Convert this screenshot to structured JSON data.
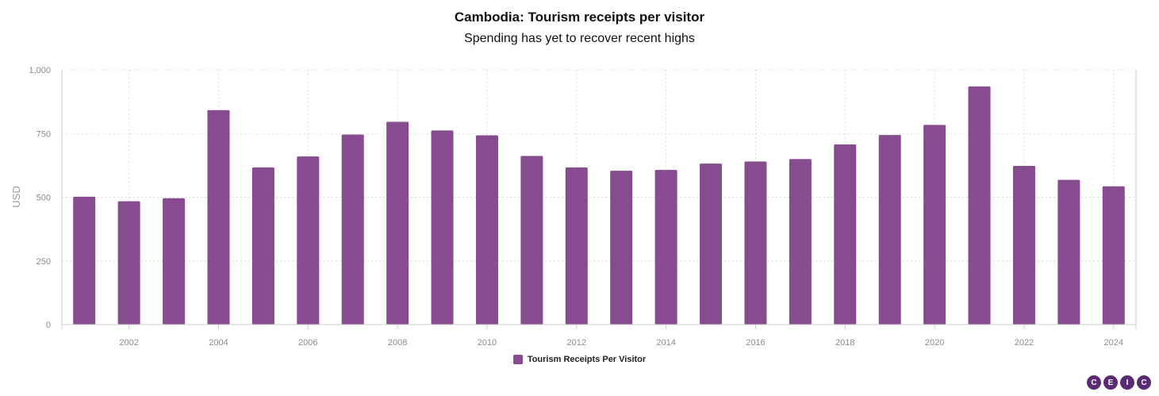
{
  "title": "Cambodia: Tourism receipts per visitor",
  "subtitle": "Spending has yet to recover recent highs",
  "colors": {
    "bar": "#874b8f",
    "logo": "#5a2a75"
  },
  "logo": [
    "C",
    "E",
    "I",
    "C"
  ],
  "chart_data": {
    "type": "bar",
    "title": "Cambodia: Tourism receipts per visitor",
    "subtitle": "Spending has yet to recover recent highs",
    "ylabel": "USD",
    "xlabel": "",
    "ylim": [
      0,
      1000
    ],
    "yticks": [
      0,
      250,
      500,
      750,
      1000
    ],
    "ytick_labels": [
      "0",
      "250",
      "500",
      "750",
      "1,000"
    ],
    "grid": true,
    "legend_position": "bottom-center",
    "categories": [
      "2001",
      "2002",
      "2003",
      "2004",
      "2005",
      "2006",
      "2007",
      "2008",
      "2009",
      "2010",
      "2011",
      "2012",
      "2013",
      "2014",
      "2015",
      "2016",
      "2017",
      "2018",
      "2019",
      "2020",
      "2021",
      "2022",
      "2023",
      "2024"
    ],
    "xtick_labels": [
      "2002",
      "2004",
      "2006",
      "2008",
      "2010",
      "2012",
      "2014",
      "2016",
      "2018",
      "2020",
      "2022",
      "2024"
    ],
    "series": [
      {
        "name": "Tourism Receipts Per Visitor",
        "values": [
          502,
          484,
          496,
          842,
          617,
          660,
          746,
          796,
          762,
          743,
          662,
          617,
          604,
          607,
          632,
          640,
          650,
          707,
          744,
          784,
          935,
          623,
          568,
          543
        ]
      }
    ]
  }
}
